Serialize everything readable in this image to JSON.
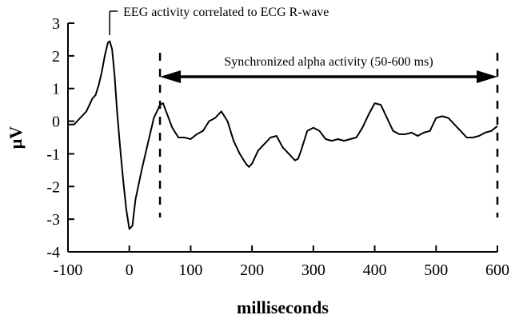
{
  "chart_data": {
    "type": "line",
    "title": "",
    "xlabel": "milliseconds",
    "ylabel": "μV",
    "xlim": [
      -100,
      600
    ],
    "ylim": [
      -4,
      3
    ],
    "xticks": [
      -100,
      0,
      100,
      200,
      300,
      400,
      500,
      600
    ],
    "yticks": [
      3,
      2,
      1,
      0,
      -1,
      -2,
      -3,
      -4
    ],
    "grid": false,
    "series": [
      {
        "x": [
          -100,
          -90,
          -80,
          -70,
          -60,
          -55,
          -50,
          -45,
          -40,
          -35,
          -32,
          -28,
          -24,
          -20,
          -15,
          -10,
          -5,
          0,
          5,
          10,
          20,
          30,
          40,
          50,
          55,
          60,
          70,
          80,
          90,
          100,
          110,
          120,
          130,
          140,
          150,
          160,
          170,
          180,
          190,
          195,
          200,
          210,
          220,
          230,
          240,
          250,
          260,
          270,
          275,
          280,
          290,
          300,
          310,
          320,
          330,
          340,
          350,
          360,
          370,
          380,
          390,
          400,
          410,
          420,
          430,
          440,
          450,
          460,
          470,
          480,
          490,
          500,
          510,
          520,
          530,
          540,
          550,
          560,
          570,
          580,
          590,
          600
        ],
        "y": [
          -0.1,
          -0.1,
          0.1,
          0.3,
          0.7,
          0.8,
          1.1,
          1.5,
          2.0,
          2.4,
          2.45,
          2.2,
          1.4,
          0.3,
          -0.8,
          -1.8,
          -2.7,
          -3.3,
          -3.2,
          -2.4,
          -1.5,
          -0.7,
          0.1,
          0.5,
          0.55,
          0.3,
          -0.2,
          -0.5,
          -0.5,
          -0.55,
          -0.4,
          -0.3,
          0.0,
          0.1,
          0.3,
          0.0,
          -0.6,
          -1.0,
          -1.3,
          -1.4,
          -1.3,
          -0.9,
          -0.7,
          -0.5,
          -0.45,
          -0.8,
          -1.0,
          -1.2,
          -1.15,
          -0.9,
          -0.3,
          -0.2,
          -0.3,
          -0.55,
          -0.6,
          -0.55,
          -0.6,
          -0.55,
          -0.5,
          -0.2,
          0.2,
          0.55,
          0.5,
          0.1,
          -0.3,
          -0.4,
          -0.4,
          -0.35,
          -0.45,
          -0.35,
          -0.3,
          0.1,
          0.15,
          0.1,
          -0.1,
          -0.3,
          -0.5,
          -0.5,
          -0.45,
          -0.35,
          -0.3,
          -0.15
        ]
      }
    ],
    "markers": [
      {
        "x": 50,
        "style": "dashed"
      },
      {
        "x": 600,
        "style": "dashed"
      }
    ],
    "annotations": {
      "peak_label": "EEG activity correlated to ECG R-wave",
      "peak_x": -32,
      "peak_y": 2.45,
      "range_label": "Synchronized alpha activity (50-600 ms)",
      "range_start": 50,
      "range_end": 600,
      "range_y": 1.35
    }
  }
}
